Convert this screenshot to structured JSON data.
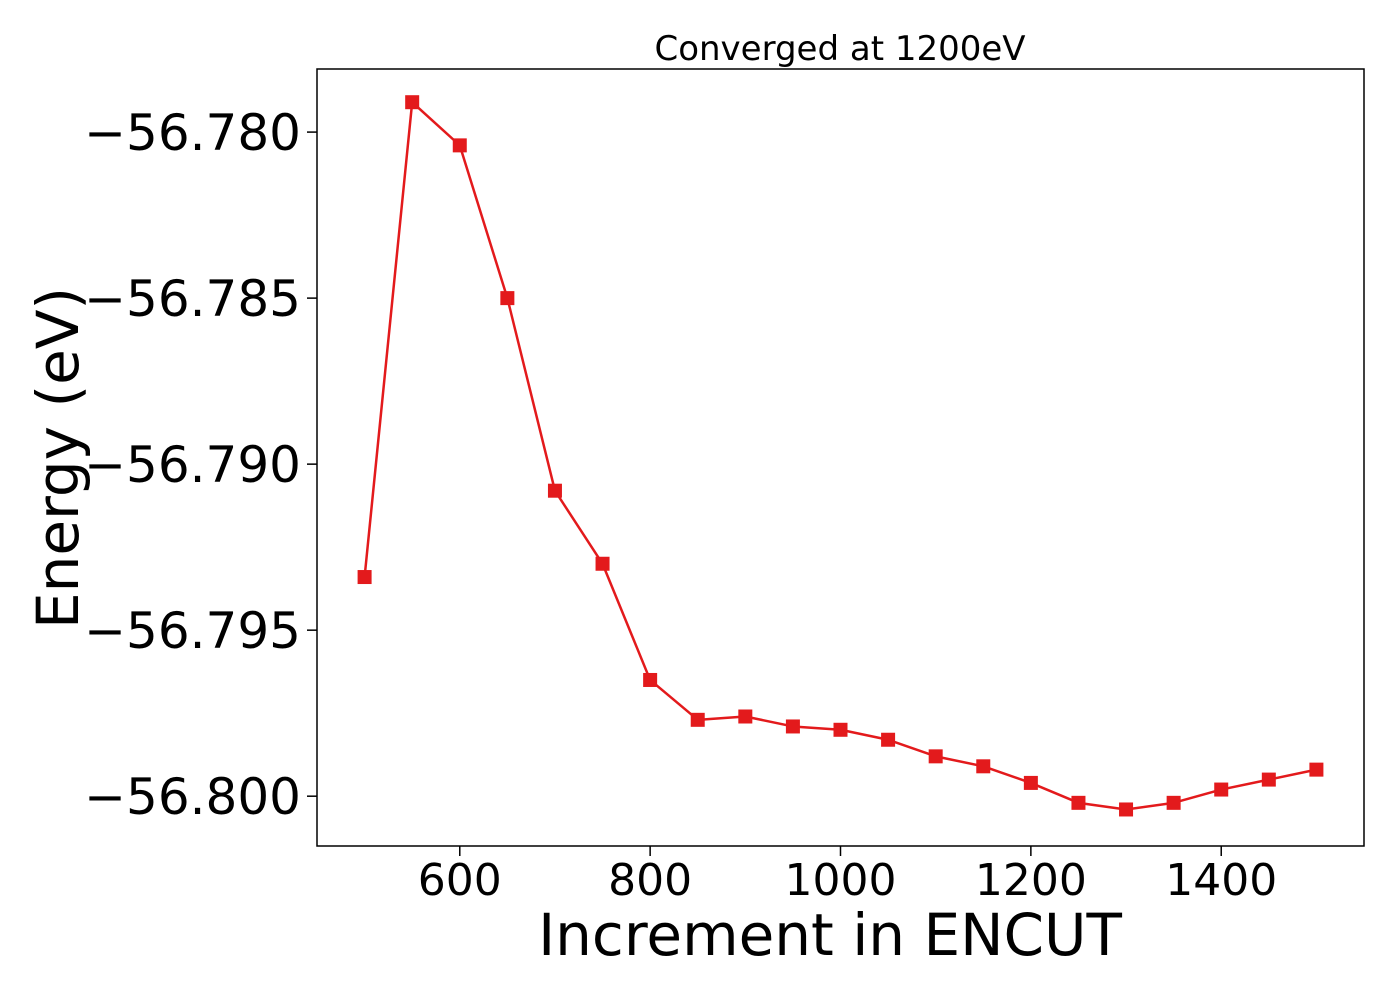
{
  "chart_data": {
    "type": "line",
    "title": "Converged at 1200eV",
    "xlabel": "Increment in ENCUT",
    "ylabel": "Energy (eV)",
    "xlim": [
      450,
      1550
    ],
    "ylim": [
      -56.8015,
      -56.7781
    ],
    "xticks": [
      600,
      800,
      1000,
      1200,
      1400
    ],
    "xtick_labels": [
      "600",
      "800",
      "1000",
      "1200",
      "1400"
    ],
    "yticks": [
      -56.78,
      -56.785,
      -56.79,
      -56.795,
      -56.8
    ],
    "ytick_labels": [
      "−56.780",
      "−56.785",
      "−56.790",
      "−56.795",
      "−56.800"
    ],
    "grid": false,
    "color": "#e31a1c",
    "marker": "square",
    "series": [
      {
        "x": [
          500,
          550,
          600,
          650,
          700,
          750,
          800,
          850,
          900,
          950,
          1000,
          1050,
          1100,
          1150,
          1200,
          1250,
          1300,
          1350,
          1400,
          1450,
          1500
        ],
        "y": [
          -56.7934,
          -56.7791,
          -56.7804,
          -56.785,
          -56.7908,
          -56.793,
          -56.7965,
          -56.7977,
          -56.7976,
          -56.7979,
          -56.798,
          -56.7983,
          -56.7988,
          -56.7991,
          -56.7996,
          -56.8002,
          -56.8004,
          -56.8002,
          -56.7998,
          -56.7995,
          -56.7992
        ]
      }
    ]
  }
}
